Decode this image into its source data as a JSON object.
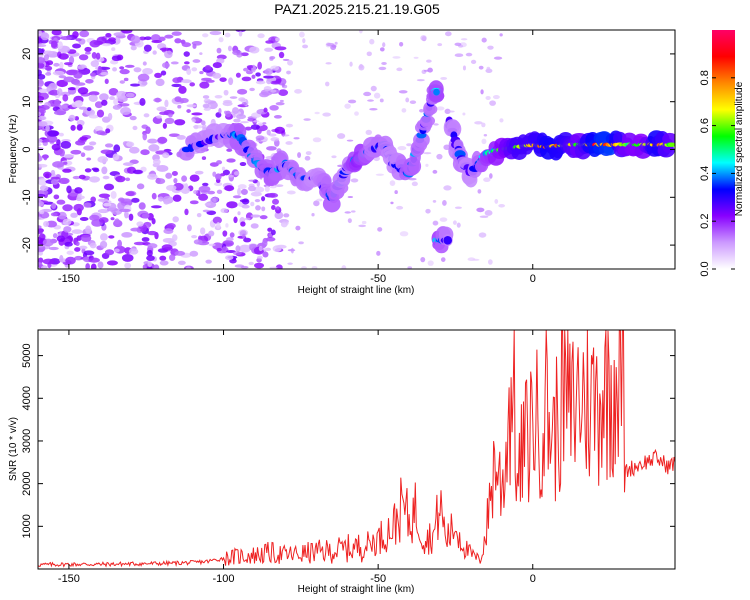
{
  "title": "PAZ1.2025.215.21.19.G05",
  "chart_data": [
    {
      "type": "heatmap",
      "xlabel": "Height of straight line (km)",
      "ylabel": "Frequency (Hz)",
      "xlim": [
        -160,
        46
      ],
      "ylim": [
        -25,
        25
      ],
      "xticks": [
        -150,
        -100,
        -50,
        0
      ],
      "yticks": [
        -20,
        -10,
        0,
        10,
        20
      ],
      "colorbar": {
        "label": "Normalized spectral amplitude",
        "range": [
          0,
          1
        ],
        "ticks": [
          0.0,
          0.2,
          0.4,
          0.6,
          0.8
        ],
        "colors": [
          "#ffffff",
          "#cc99ff",
          "#8800ff",
          "#0000ff",
          "#00ffff",
          "#00ff00",
          "#ffff00",
          "#ff8800",
          "#ff0000",
          "#ff0066"
        ]
      },
      "ridge": [
        {
          "x": -112,
          "y": 0,
          "amp": 0.35
        },
        {
          "x": -100,
          "y": 3,
          "amp": 0.3
        },
        {
          "x": -95,
          "y": 3,
          "amp": 0.4
        },
        {
          "x": -90,
          "y": -2,
          "amp": 0.35
        },
        {
          "x": -85,
          "y": -5,
          "amp": 0.4
        },
        {
          "x": -80,
          "y": -3,
          "amp": 0.35
        },
        {
          "x": -75,
          "y": -6,
          "amp": 0.35
        },
        {
          "x": -70,
          "y": -6,
          "amp": 0.3
        },
        {
          "x": -65,
          "y": -10,
          "amp": 0.4
        },
        {
          "x": -60,
          "y": -4,
          "amp": 0.3
        },
        {
          "x": -57,
          "y": -2,
          "amp": 0.5
        },
        {
          "x": -52,
          "y": 0,
          "amp": 0.35
        },
        {
          "x": -48,
          "y": 1,
          "amp": 0.35
        },
        {
          "x": -45,
          "y": -3,
          "amp": 0.3
        },
        {
          "x": -40,
          "y": -5,
          "amp": 0.4
        },
        {
          "x": -36,
          "y": 3,
          "amp": 0.35
        },
        {
          "x": -32,
          "y": 12,
          "amp": 0.35
        },
        {
          "x": -31,
          "y": -19,
          "amp": 0.45
        },
        {
          "x": -27,
          "y": 6,
          "amp": 0.3
        },
        {
          "x": -23,
          "y": -2,
          "amp": 0.35
        },
        {
          "x": -20,
          "y": -5,
          "amp": 0.3
        },
        {
          "x": -15,
          "y": -1,
          "amp": 0.45
        },
        {
          "x": -10,
          "y": 0,
          "amp": 0.55
        },
        {
          "x": -5,
          "y": 0.5,
          "amp": 0.7
        },
        {
          "x": 0,
          "y": 1,
          "amp": 0.7
        },
        {
          "x": 5,
          "y": 0.5,
          "amp": 0.8
        },
        {
          "x": 10,
          "y": 1,
          "amp": 0.75
        },
        {
          "x": 15,
          "y": 1,
          "amp": 0.6
        },
        {
          "x": 20,
          "y": 1,
          "amp": 0.85
        },
        {
          "x": 25,
          "y": 1,
          "amp": 0.9
        },
        {
          "x": 30,
          "y": 1,
          "amp": 0.6
        },
        {
          "x": 35,
          "y": 1,
          "amp": 0.55
        },
        {
          "x": 40,
          "y": 1,
          "amp": 0.8
        },
        {
          "x": 45,
          "y": 1,
          "amp": 0.6
        }
      ]
    },
    {
      "type": "line",
      "xlabel": "Height of straight line (km)",
      "ylabel": "SNR (10 * v/v)",
      "xlim": [
        -160,
        46
      ],
      "ylim": [
        0,
        5600
      ],
      "xticks": [
        -150,
        -100,
        -50,
        0
      ],
      "yticks": [
        1000,
        2000,
        3000,
        4000,
        5000
      ],
      "color": "#ee2222",
      "series": [
        {
          "x": [
            -160,
            -150,
            -140,
            -130,
            -120,
            -110,
            -105,
            -100,
            -95,
            -90,
            -85,
            -80,
            -75,
            -70,
            -65,
            -60,
            -55,
            -50,
            -45,
            -42,
            -40,
            -38,
            -35,
            -32,
            -30,
            -28,
            -25,
            -22,
            -20,
            -17,
            -15,
            -13,
            -12,
            -10,
            -8,
            -6,
            -5,
            -3,
            -1,
            0,
            2,
            4,
            5,
            7,
            10,
            12,
            15,
            18,
            20,
            23,
            25,
            28,
            29,
            30,
            33,
            36,
            40,
            44,
            46
          ],
          "y": [
            100,
            110,
            110,
            120,
            130,
            150,
            180,
            250,
            300,
            320,
            380,
            330,
            350,
            400,
            420,
            480,
            520,
            700,
            1000,
            1500,
            1100,
            1400,
            700,
            800,
            1500,
            700,
            1000,
            500,
            350,
            200,
            900,
            2200,
            2600,
            1800,
            3400,
            4800,
            1800,
            2900,
            3100,
            3800,
            3200,
            4100,
            3600,
            3100,
            4300,
            3600,
            4100,
            4000,
            3900,
            4300,
            4400,
            4700,
            4900,
            2300,
            2400,
            2500,
            2600,
            2400,
            2500
          ]
        }
      ]
    }
  ]
}
